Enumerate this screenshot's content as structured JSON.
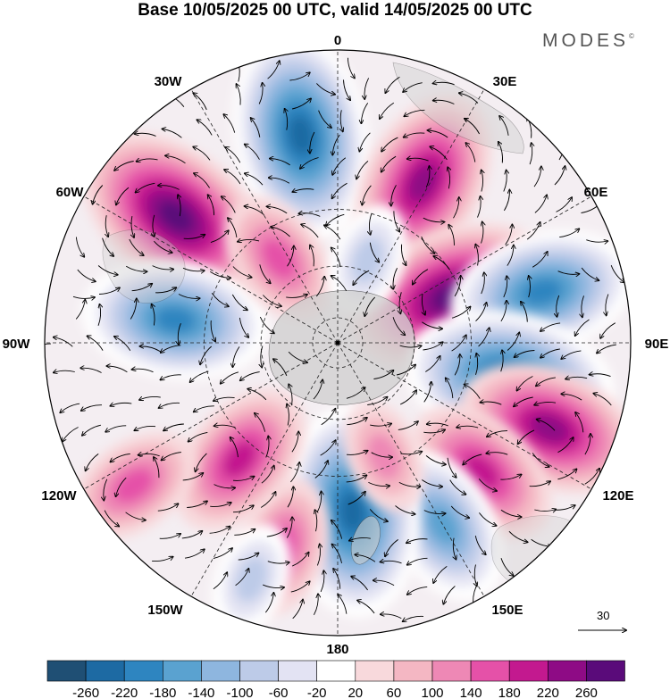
{
  "header": {
    "title": "Base 10/05/2025 00 UTC, valid 14/05/2025 00 UTC",
    "brand": "MODES",
    "brand_mark": "©"
  },
  "map": {
    "projection": "south-polar-stereographic",
    "longitude_labels": [
      {
        "text": "0",
        "lon": 0
      },
      {
        "text": "30E",
        "lon": 30
      },
      {
        "text": "60E",
        "lon": 60
      },
      {
        "text": "90E",
        "lon": 90
      },
      {
        "text": "120E",
        "lon": 120
      },
      {
        "text": "150E",
        "lon": 150
      },
      {
        "text": "180",
        "lon": 180
      },
      {
        "text": "150W",
        "lon": -150
      },
      {
        "text": "120W",
        "lon": -120
      },
      {
        "text": "90W",
        "lon": -90
      },
      {
        "text": "60W",
        "lon": -60
      },
      {
        "text": "30W",
        "lon": -30
      }
    ],
    "latitude_circles": [
      -80,
      -60,
      -40
    ],
    "vector_reference": {
      "value": "30"
    },
    "anomaly_centers": [
      {
        "lon": -10,
        "colat": 0.72,
        "value": -260
      },
      {
        "lon": -52,
        "colat": 0.7,
        "value": 240
      },
      {
        "lon": 28,
        "colat": 0.62,
        "value": 200
      },
      {
        "lon": -82,
        "colat": 0.56,
        "value": -220
      },
      {
        "lon": 68,
        "colat": 0.42,
        "value": 240
      },
      {
        "lon": 76,
        "colat": 0.72,
        "value": -220
      },
      {
        "lon": 102,
        "colat": 0.6,
        "value": -240
      },
      {
        "lon": 112,
        "colat": 0.78,
        "value": 200
      },
      {
        "lon": 132,
        "colat": 0.66,
        "value": 180
      },
      {
        "lon": 150,
        "colat": 0.72,
        "value": -160
      },
      {
        "lon": 175,
        "colat": 0.58,
        "value": -240
      },
      {
        "lon": -165,
        "colat": 0.72,
        "value": 120
      },
      {
        "lon": -140,
        "colat": 0.52,
        "value": 160
      },
      {
        "lon": -125,
        "colat": 0.85,
        "value": 120
      },
      {
        "lon": -160,
        "colat": 0.86,
        "value": -100
      },
      {
        "lon": -35,
        "colat": 0.35,
        "value": 120
      },
      {
        "lon": 20,
        "colat": 0.3,
        "value": -80
      },
      {
        "lon": 158,
        "colat": 0.42,
        "value": 80
      }
    ],
    "land_color": "#cfcfcf"
  },
  "legend": {
    "bins": [
      {
        "label": "-260",
        "color": "#1f4f74"
      },
      {
        "label": "-220",
        "color": "#1d6aa3"
      },
      {
        "label": "-180",
        "color": "#2e85c0"
      },
      {
        "label": "-140",
        "color": "#5aa2d0"
      },
      {
        "label": "-100",
        "color": "#8eb6df"
      },
      {
        "label": "-60",
        "color": "#bdcbe8"
      },
      {
        "label": "-20",
        "color": "#e3e3f3"
      },
      {
        "label": "20",
        "color": "#ffffff"
      },
      {
        "label": "60",
        "color": "#f8d9dc"
      },
      {
        "label": "100",
        "color": "#f4b7c3"
      },
      {
        "label": "140",
        "color": "#ee88b5"
      },
      {
        "label": "180",
        "color": "#e551a8"
      },
      {
        "label": "220",
        "color": "#c3198f"
      },
      {
        "label": "260",
        "color": "#8e0b85"
      }
    ],
    "last_color": "#5a0b7a"
  }
}
